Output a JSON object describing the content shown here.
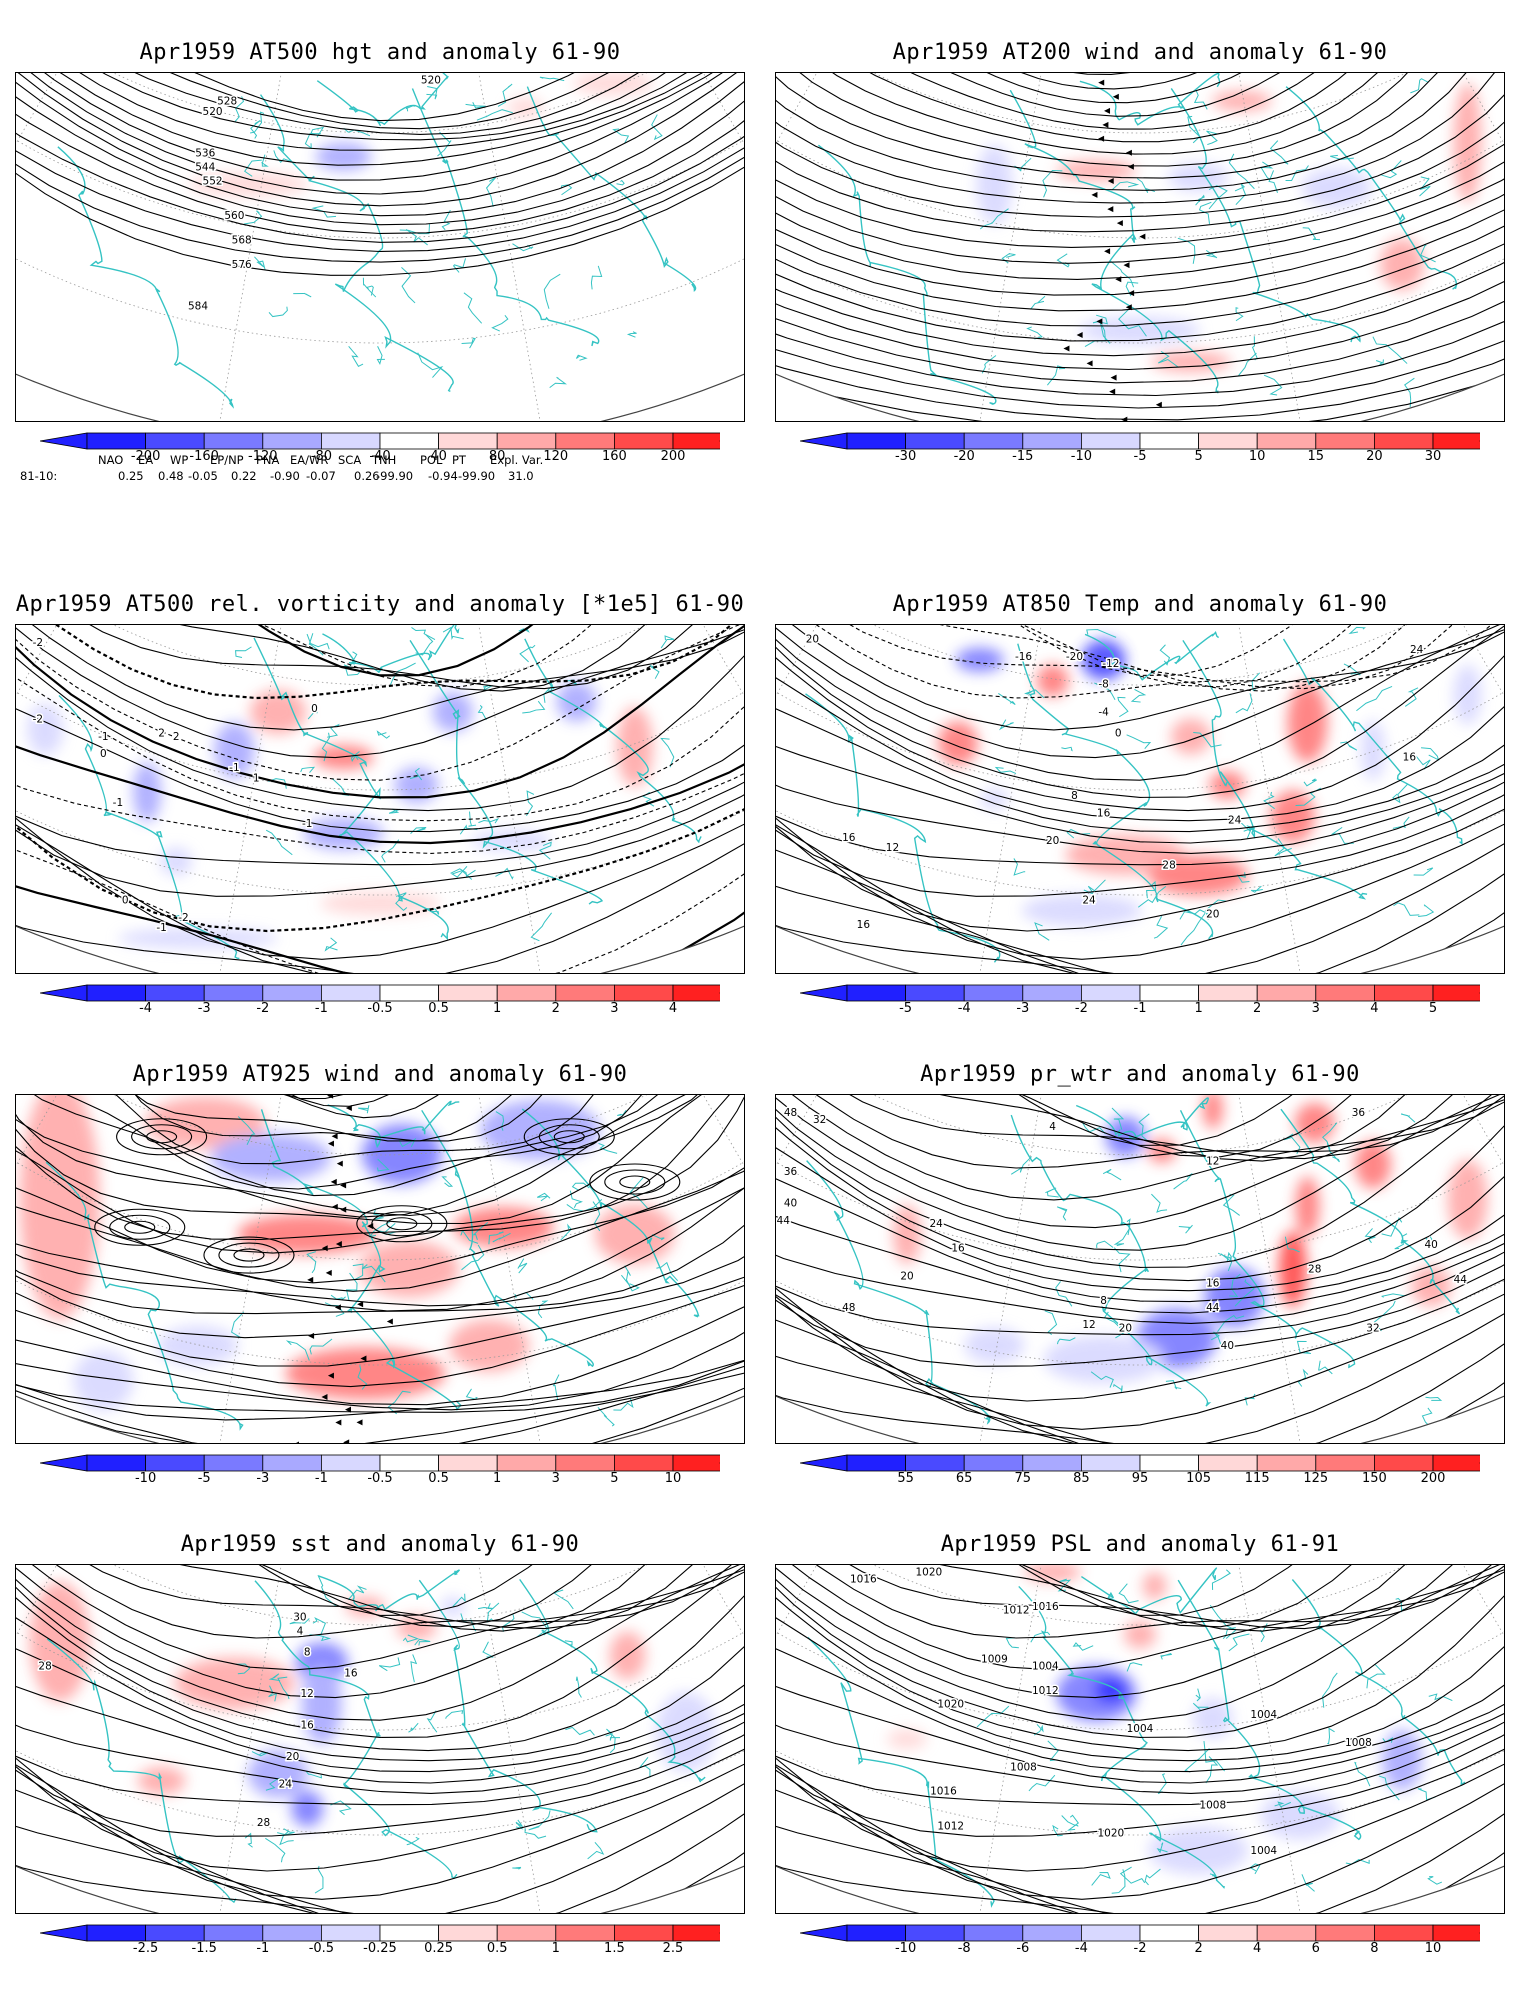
{
  "panels": [
    {
      "id": "hgt500",
      "title": "Apr1959 AT500 hgt and anomaly 61-90",
      "colorbar": {
        "labels": [
          "-200",
          "-160",
          "-120",
          "-80",
          "-40",
          "40",
          "80",
          "120",
          "160",
          "200"
        ]
      },
      "contour_labels": [
        "520",
        "528",
        "536",
        "544",
        "552",
        "560",
        "568",
        "576",
        "584",
        "520"
      ]
    },
    {
      "id": "wind200",
      "title": "Apr1959 AT200 wind and anomaly 61-90",
      "colorbar": {
        "labels": [
          "-30",
          "-20",
          "-15",
          "-10",
          "-5",
          "5",
          "10",
          "15",
          "20",
          "30"
        ]
      },
      "contour_labels": []
    },
    {
      "id": "vort500",
      "title": "Apr1959 AT500 rel. vorticity and anomaly [*1e5] 61-90",
      "colorbar": {
        "labels": [
          "-4",
          "-3",
          "-2",
          "-1",
          "-0.5",
          "0.5",
          "1",
          "2",
          "3",
          "4"
        ]
      },
      "contour_labels": [
        "-2",
        "-2",
        "-1",
        "0",
        "2",
        "2",
        "-1",
        "1",
        "0",
        "-1",
        "-1",
        "0",
        "-2",
        "-1"
      ]
    },
    {
      "id": "temp850",
      "title": "Apr1959 AT850 Temp and anomaly 61-90",
      "colorbar": {
        "labels": [
          "-5",
          "-4",
          "-3",
          "-2",
          "-1",
          "1",
          "2",
          "3",
          "4",
          "5"
        ]
      },
      "contour_labels": [
        "20",
        "-16",
        "-20",
        "-12",
        "-8",
        "-4",
        "0",
        "8",
        "16",
        "20",
        "24",
        "28",
        "24",
        "12",
        "16",
        "16",
        "24",
        "20",
        "16"
      ]
    },
    {
      "id": "wind925",
      "title": "Apr1959 AT925 wind and anomaly 61-90",
      "colorbar": {
        "labels": [
          "-10",
          "-5",
          "-3",
          "-1",
          "-0.5",
          "0.5",
          "1",
          "3",
          "5",
          "10"
        ]
      },
      "contour_labels": []
    },
    {
      "id": "prwtr",
      "title": "Apr1959 pr_wtr and anomaly 61-90",
      "colorbar": {
        "labels": [
          "55",
          "65",
          "75",
          "85",
          "95",
          "105",
          "115",
          "125",
          "150",
          "200"
        ]
      },
      "contour_labels": [
        "48",
        "32",
        "36",
        "40",
        "44",
        "24",
        "20",
        "16",
        "12",
        "8",
        "4",
        "12",
        "20",
        "16",
        "40",
        "44",
        "48",
        "36",
        "40",
        "44",
        "28",
        "32"
      ]
    },
    {
      "id": "sst",
      "title": "Apr1959 sst and anomaly 61-90",
      "colorbar": {
        "labels": [
          "-2.5",
          "-1.5",
          "-1",
          "-0.5",
          "-0.25",
          "0.25",
          "0.5",
          "1",
          "1.5",
          "2.5"
        ]
      },
      "contour_labels": [
        "28",
        "4",
        "8",
        "12",
        "16",
        "20",
        "24",
        "28",
        "30",
        "16"
      ]
    },
    {
      "id": "psl",
      "title": "Apr1959 PSL and anomaly 61-91",
      "colorbar": {
        "labels": [
          "-10",
          "-8",
          "-6",
          "-4",
          "-2",
          "2",
          "4",
          "6",
          "8",
          "10"
        ]
      },
      "contour_labels": [
        "1016",
        "1020",
        "1012",
        "1016",
        "1009",
        "1004",
        "1012",
        "1020",
        "1016",
        "1012",
        "1008",
        "1004",
        "1004",
        "1008",
        "1008",
        "1004",
        "1020"
      ]
    }
  ],
  "indices": {
    "headers": [
      "NAO",
      "EA",
      "WP",
      "EP/NP",
      "PNA",
      "EA/WR",
      "SCA",
      "TNH",
      "POL",
      "PT",
      "Expl. Var."
    ],
    "row_label": "81-10:",
    "values": [
      "0.25",
      "0.48",
      "-0.05",
      "0.22",
      "-0.90",
      "-0.07",
      "0.26",
      "-99.90",
      "-0.94",
      "-99.90",
      "31.0"
    ]
  },
  "colors": {
    "blue_scale": [
      "#2020ff",
      "#4a4aff",
      "#7a7aff",
      "#a9a9ff",
      "#d8d8ff"
    ],
    "red_scale": [
      "#ffd8d8",
      "#ffa9a9",
      "#ff7a7a",
      "#ff4a4a",
      "#ff2020"
    ],
    "coastline": "#35c3c3",
    "contour": "#000000"
  }
}
